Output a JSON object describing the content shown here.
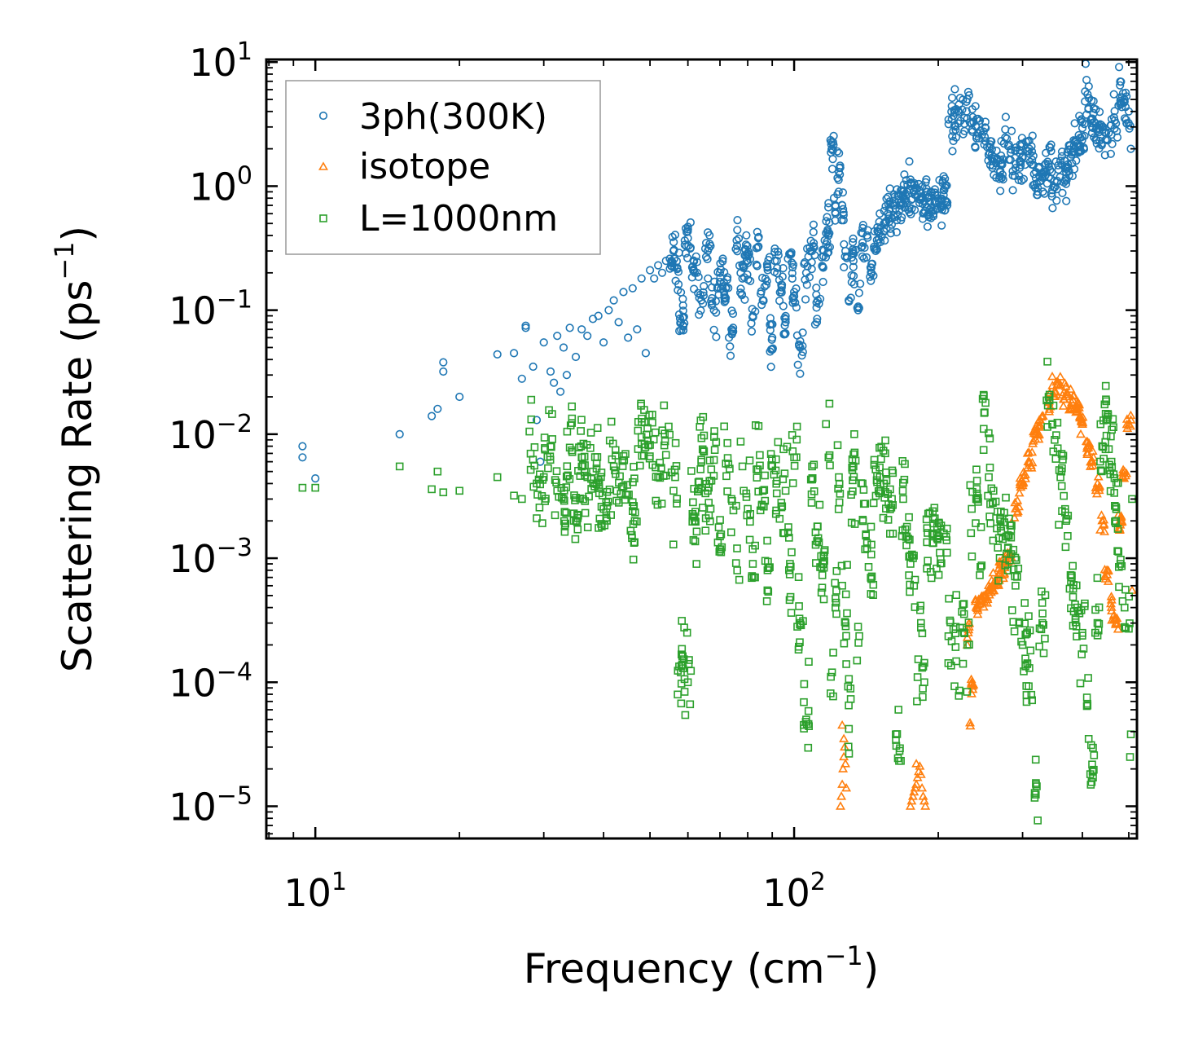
{
  "chart_data": {
    "type": "scatter",
    "title": "",
    "xlabel": {
      "prefix": "Frequency (cm",
      "sup": "−1",
      "suffix": ")"
    },
    "ylabel": {
      "prefix": "Scattering Rate (ps",
      "sup": "−1",
      "suffix": ")"
    },
    "xscale": "log",
    "yscale": "log",
    "xlim": [
      7.9,
      520
    ],
    "ylim": [
      5.5e-06,
      10.5
    ],
    "x_ticks": [
      {
        "value": 10,
        "base": "10",
        "exp": "1"
      },
      {
        "value": 100,
        "base": "10",
        "exp": "2"
      }
    ],
    "y_ticks": [
      {
        "value": 10,
        "base": "10",
        "exp": "1"
      },
      {
        "value": 1,
        "base": "10",
        "exp": "0"
      },
      {
        "value": 0.1,
        "base": "10",
        "exp": "−1"
      },
      {
        "value": 0.01,
        "base": "10",
        "exp": "−2"
      },
      {
        "value": 0.001,
        "base": "10",
        "exp": "−3"
      },
      {
        "value": 0.0001,
        "base": "10",
        "exp": "−4"
      },
      {
        "value": 1e-05,
        "base": "10",
        "exp": "−5"
      }
    ],
    "legend_position": "top-left",
    "series": [
      {
        "name": "3ph(300K)",
        "marker": "circle",
        "color": "#1f77b4",
        "x": [
          9.4,
          9.4,
          10.0,
          15,
          17.5,
          18,
          18.5,
          18.5,
          20,
          24,
          26,
          27,
          27.5,
          27.5,
          28.5,
          29,
          29.5,
          30,
          31,
          31.5,
          32,
          32.5,
          33,
          33.5,
          34,
          35,
          36,
          37,
          38,
          39,
          40,
          41,
          42,
          43,
          44,
          45,
          46,
          47,
          48,
          49,
          50,
          51,
          52,
          53,
          54,
          55,
          56,
          57,
          58,
          60,
          62,
          64,
          66,
          68,
          70,
          72,
          74,
          76,
          78,
          80,
          82,
          84,
          86,
          88,
          90,
          92,
          94,
          96,
          98,
          100,
          103,
          106,
          109,
          112,
          115,
          118,
          120,
          122,
          124,
          126,
          128,
          130,
          133,
          136,
          139,
          142,
          145,
          148,
          151,
          154,
          157,
          160,
          163,
          166,
          169,
          172,
          175,
          178,
          181,
          184,
          187,
          190,
          230,
          235,
          240,
          245,
          250,
          255,
          260,
          270,
          280,
          290,
          300,
          310,
          320,
          330,
          340,
          350,
          360,
          370,
          380,
          390,
          400,
          410,
          420,
          430,
          440,
          450,
          460,
          470,
          480,
          490,
          500,
          505
        ],
        "y": [
          0.008,
          0.0065,
          0.0044,
          0.01,
          0.014,
          0.016,
          0.032,
          0.038,
          0.02,
          0.044,
          0.045,
          0.028,
          0.075,
          0.072,
          0.035,
          0.013,
          0.006,
          0.055,
          0.032,
          0.026,
          0.062,
          0.022,
          0.05,
          0.03,
          0.072,
          0.042,
          0.07,
          0.062,
          0.085,
          0.09,
          0.055,
          0.1,
          0.12,
          0.08,
          0.14,
          0.06,
          0.15,
          0.07,
          0.18,
          0.045,
          0.21,
          0.18,
          0.23,
          0.2,
          0.25,
          0.26,
          0.3,
          0.22,
          0.08,
          0.38,
          0.2,
          0.12,
          0.3,
          0.1,
          0.2,
          0.15,
          0.07,
          0.33,
          0.18,
          0.24,
          0.09,
          0.32,
          0.12,
          0.22,
          0.06,
          0.25,
          0.16,
          0.08,
          0.28,
          0.14,
          0.05,
          0.2,
          0.3,
          0.12,
          0.22,
          0.4,
          2.0,
          0.6,
          1.3,
          0.7,
          0.3,
          0.12,
          0.25,
          0.1,
          0.35,
          0.4,
          0.22,
          0.3,
          0.45,
          0.5,
          0.6,
          0.55,
          0.66,
          0.7,
          0.8,
          0.9,
          0.95,
          0.9,
          0.85,
          0.8,
          0.75,
          0.8,
          3.5,
          3.2,
          3.0,
          2.8,
          2.5,
          1.8,
          1.6,
          1.5,
          2.1,
          1.4,
          1.7,
          2.0,
          1.3,
          1.2,
          1.5,
          1.1,
          1.6,
          1.3,
          1.8,
          2.2,
          2.5,
          5.5,
          3.5,
          2.8,
          3.0,
          2.4,
          2.6,
          3.2,
          5.2,
          4.8,
          4.0,
          2.0
        ],
        "n_points": 1200
      },
      {
        "name": "isotope",
        "marker": "triangle",
        "color": "#ff7f0e",
        "x": [
          125,
          125.5,
          126,
          126.5,
          127,
          127.5,
          128,
          128.5,
          126,
          127,
          175,
          176,
          177,
          178,
          179,
          180,
          181,
          182,
          183,
          184,
          185,
          186,
          187,
          188,
          180,
          230,
          231,
          232,
          233,
          235,
          240,
          245,
          250,
          255,
          260,
          265,
          270,
          280,
          290,
          300,
          310,
          320,
          330,
          340,
          350,
          360,
          370,
          380,
          390,
          400,
          410,
          420,
          430,
          440,
          450,
          460,
          470,
          480,
          490,
          500,
          505,
          508
        ],
        "y": [
          1e-05,
          1.2e-05,
          1.5e-05,
          2e-05,
          2.5e-05,
          3e-05,
          2.2e-05,
          1.4e-05,
          4.5e-05,
          3.5e-05,
          1e-05,
          1.1e-05,
          1.2e-05,
          1.3e-05,
          1.4e-05,
          1.5e-05,
          1.7e-05,
          1.9e-05,
          2.1e-05,
          1.8e-05,
          1.4e-05,
          1.2e-05,
          1.1e-05,
          1e-05,
          2.2e-05,
          0.0002,
          0.00025,
          0.0003,
          4.7e-05,
          0.0001,
          0.0004,
          0.00045,
          0.0005,
          0.00055,
          0.0006,
          0.0007,
          0.0008,
          0.001,
          0.0025,
          0.004,
          0.006,
          0.01,
          0.014,
          0.018,
          0.022,
          0.025,
          0.02,
          0.018,
          0.016,
          0.012,
          0.008,
          0.006,
          0.004,
          0.002,
          0.0008,
          0.0004,
          0.0003,
          0.002,
          0.005,
          0.012,
          0.013,
          0.00055
        ],
        "n_points": 900
      },
      {
        "name": "L=1000nm",
        "marker": "square",
        "color": "#2ca02c",
        "x": [
          9.4,
          10.0,
          15,
          17.5,
          18,
          18.5,
          20,
          24,
          26,
          27,
          28,
          29,
          30,
          31,
          32,
          33,
          34,
          35,
          36,
          37,
          38,
          40,
          42,
          44,
          46,
          48,
          50,
          52,
          54,
          56,
          58,
          60,
          62,
          64,
          66,
          68,
          70,
          72,
          74,
          76,
          78,
          80,
          82,
          84,
          86,
          88,
          90,
          92,
          94,
          96,
          98,
          100,
          103,
          106,
          109,
          112,
          115,
          118,
          120,
          122,
          124,
          126,
          128,
          130,
          133,
          136,
          139,
          142,
          145,
          148,
          151,
          154,
          157,
          160,
          163,
          166,
          169,
          172,
          175,
          178,
          181,
          184,
          187,
          190,
          230,
          235,
          240,
          245,
          250,
          255,
          260,
          270,
          280,
          290,
          300,
          310,
          320,
          330,
          340,
          350,
          360,
          370,
          380,
          390,
          400,
          410,
          420,
          430,
          440,
          450,
          460,
          470,
          480,
          490,
          500,
          505,
          508
        ],
        "y": [
          0.0037,
          0.0037,
          0.0055,
          0.0036,
          0.005,
          0.0034,
          0.0035,
          0.0045,
          0.0032,
          0.003,
          0.0105,
          0.004,
          0.0045,
          0.008,
          0.0035,
          0.003,
          0.0078,
          0.002,
          0.0065,
          0.0045,
          0.005,
          0.0025,
          0.0055,
          0.0038,
          0.0024,
          0.0095,
          0.0082,
          0.0045,
          0.0068,
          0.0035,
          0.00012,
          0.0001,
          0.002,
          0.006,
          0.0035,
          0.0062,
          0.0015,
          0.0058,
          0.003,
          0.0012,
          0.0055,
          0.0025,
          0.0009,
          0.0052,
          0.0035,
          0.0008,
          0.0055,
          0.0042,
          0.0028,
          0.0035,
          0.0009,
          0.0065,
          0.0003,
          5e-05,
          0.0055,
          0.0018,
          0.0009,
          0.0065,
          0.00012,
          0.0004,
          0.0045,
          0.0006,
          0.0003,
          6.5e-05,
          0.0055,
          0.00028,
          0.004,
          0.0012,
          0.00068,
          0.0052,
          0.0045,
          0.004,
          0.0033,
          0.003,
          3.8e-05,
          2.8e-05,
          0.003,
          0.0015,
          0.0009,
          0.0006,
          0.00011,
          0.0003,
          0.0001,
          0.0016,
          0.0002,
          0.0025,
          0.003,
          0.00085,
          0.015,
          0.0045,
          0.0028,
          0.0018,
          0.0012,
          0.0006,
          0.0002,
          0.00013,
          1.5e-05,
          0.0003,
          0.02,
          0.009,
          0.0045,
          0.002,
          0.0007,
          0.0004,
          0.00025,
          6.5e-05,
          1.9e-05,
          0.0003,
          0.008,
          0.013,
          0.006,
          0.002,
          0.0009,
          0.0004,
          0.00027,
          3.8e-05,
          0.003
        ]
      }
    ]
  }
}
